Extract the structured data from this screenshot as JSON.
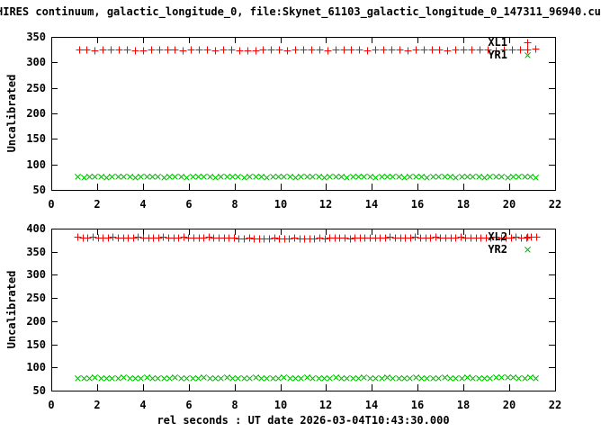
{
  "header": {
    "title": "HIRES continuum, galactic_longitude_0, file:Skynet_61103_galactic_longitude_0_147311_96940.cu"
  },
  "palette": {
    "background": "#ffffff",
    "foreground": "#000000",
    "red": "#ff0000",
    "green": "#00c000"
  },
  "chart_data": [
    {
      "type": "scatter",
      "ylabel": "Uncalibrated",
      "xlabel": "",
      "ylim": [
        50,
        350
      ],
      "yticks": [
        50,
        100,
        150,
        200,
        250,
        300,
        350
      ],
      "xlim": [
        0,
        22
      ],
      "xticks": [
        0,
        2,
        4,
        6,
        8,
        10,
        12,
        14,
        16,
        18,
        20,
        22
      ],
      "grid": false,
      "legend_position": "top-right-inside",
      "series": [
        {
          "name": "XL1",
          "marker": "plus",
          "color": "#ff0000",
          "x_start": 1.2,
          "x_step": 0.35,
          "y": [
            325,
            325,
            324,
            325,
            325,
            326,
            325,
            324,
            324,
            325,
            326,
            325,
            325,
            324,
            325,
            326,
            325,
            324,
            325,
            325,
            324,
            323,
            324,
            325,
            326,
            325,
            324,
            325,
            325,
            326,
            325,
            324,
            325,
            325,
            326,
            325,
            324,
            325,
            326,
            325,
            325,
            324,
            325,
            325,
            326,
            325,
            324,
            325,
            325,
            326,
            325,
            325,
            324,
            325,
            326,
            325,
            326,
            327
          ]
        },
        {
          "name": "YR1",
          "marker": "cross",
          "color": "#00c000",
          "x_start": 1.15,
          "x_step": 0.25,
          "y": [
            76,
            75,
            76,
            77,
            76,
            75,
            76,
            76,
            77,
            76,
            75,
            76,
            77,
            76,
            76,
            75,
            76,
            77,
            76,
            75,
            76,
            76,
            77,
            76,
            75,
            76,
            77,
            76,
            76,
            75,
            76,
            77,
            76,
            75,
            76,
            76,
            77,
            76,
            75,
            76,
            77,
            76,
            76,
            75,
            76,
            77,
            76,
            75,
            76,
            76,
            77,
            76,
            75,
            76,
            77,
            76,
            76,
            75,
            76,
            77,
            76,
            75,
            76,
            76,
            77,
            76,
            75,
            76,
            77,
            76,
            76,
            75,
            76,
            77,
            76,
            75,
            76,
            76,
            77,
            76,
            75
          ]
        }
      ]
    },
    {
      "type": "scatter",
      "ylabel": "Uncalibrated",
      "xlabel": "rel seconds : UT date 2026-03-04T10:43:30.000",
      "ylim": [
        50,
        400
      ],
      "yticks": [
        50,
        100,
        150,
        200,
        250,
        300,
        350,
        400
      ],
      "xlim": [
        0,
        22
      ],
      "xticks": [
        0,
        2,
        4,
        6,
        8,
        10,
        12,
        14,
        16,
        18,
        20,
        22
      ],
      "grid": false,
      "legend_position": "top-right-inside",
      "series": [
        {
          "name": "XL2",
          "marker": "plus",
          "color": "#ff0000",
          "x_start": 1.15,
          "x_step": 0.22,
          "y": [
            382,
            381,
            381,
            382,
            381,
            380,
            381,
            382,
            381,
            381,
            380,
            381,
            382,
            381,
            380,
            381,
            381,
            382,
            381,
            380,
            381,
            382,
            381,
            381,
            380,
            381,
            382,
            381,
            380,
            381,
            380,
            380,
            379,
            379,
            380,
            379,
            378,
            379,
            379,
            380,
            379,
            378,
            379,
            380,
            379,
            379,
            378,
            379,
            380,
            379,
            380,
            380,
            381,
            380,
            379,
            380,
            381,
            380,
            380,
            381,
            380,
            381,
            382,
            381,
            380,
            381,
            381,
            382,
            381,
            380,
            381,
            382,
            381,
            381,
            380,
            381,
            382,
            381,
            380,
            381,
            381,
            380,
            381,
            382,
            381,
            380,
            381,
            382,
            381,
            380,
            382,
            383
          ]
        },
        {
          "name": "YR2",
          "marker": "cross",
          "color": "#00c000",
          "x_start": 1.15,
          "x_step": 0.25,
          "y": [
            78,
            77,
            78,
            79,
            78,
            77,
            78,
            78,
            79,
            78,
            77,
            78,
            79,
            78,
            78,
            77,
            78,
            79,
            78,
            77,
            78,
            78,
            79,
            78,
            77,
            78,
            79,
            78,
            78,
            77,
            78,
            79,
            78,
            77,
            78,
            78,
            79,
            78,
            77,
            78,
            79,
            78,
            78,
            77,
            78,
            79,
            78,
            77,
            78,
            78,
            79,
            78,
            77,
            78,
            79,
            78,
            78,
            77,
            78,
            79,
            78,
            77,
            78,
            78,
            79,
            78,
            77,
            78,
            79,
            78,
            78,
            77,
            78,
            79,
            79,
            80,
            79,
            78,
            78,
            79,
            78
          ]
        }
      ]
    }
  ]
}
